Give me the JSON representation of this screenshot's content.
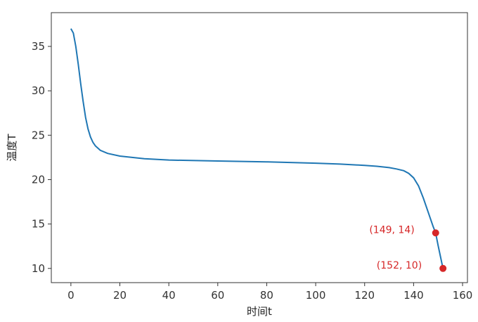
{
  "chart_data": {
    "type": "line",
    "xlabel": "时间t",
    "ylabel": "温度T",
    "xlim": [
      -8,
      162
    ],
    "ylim": [
      8.4,
      38.8
    ],
    "x_ticks": [
      0,
      20,
      40,
      60,
      80,
      100,
      120,
      140,
      160
    ],
    "y_ticks": [
      10,
      15,
      20,
      25,
      30,
      35
    ],
    "grid": false,
    "line_color": "#1f77b4",
    "marker_color": "#d62728",
    "series": [
      {
        "x": [
          0,
          1,
          2,
          3,
          4,
          5,
          6,
          7,
          8,
          9,
          10,
          12,
          15,
          20,
          30,
          40,
          60,
          80,
          100,
          110,
          120,
          125,
          130,
          133,
          136,
          138,
          140,
          142,
          144,
          146,
          147,
          148,
          149,
          150,
          151,
          152
        ],
        "y": [
          37.0,
          36.5,
          35.0,
          33.0,
          30.8,
          28.8,
          27.0,
          25.7,
          24.8,
          24.2,
          23.8,
          23.3,
          22.95,
          22.65,
          22.35,
          22.2,
          22.1,
          22.0,
          21.85,
          21.75,
          21.6,
          21.5,
          21.35,
          21.2,
          21.0,
          20.7,
          20.2,
          19.3,
          17.9,
          16.3,
          15.5,
          14.7,
          14.0,
          12.6,
          11.3,
          10.0
        ]
      }
    ],
    "annotations": [
      {
        "x": 149,
        "y": 14,
        "label": "(149, 14)"
      },
      {
        "x": 152,
        "y": 10,
        "label": "(152, 10)"
      }
    ]
  }
}
